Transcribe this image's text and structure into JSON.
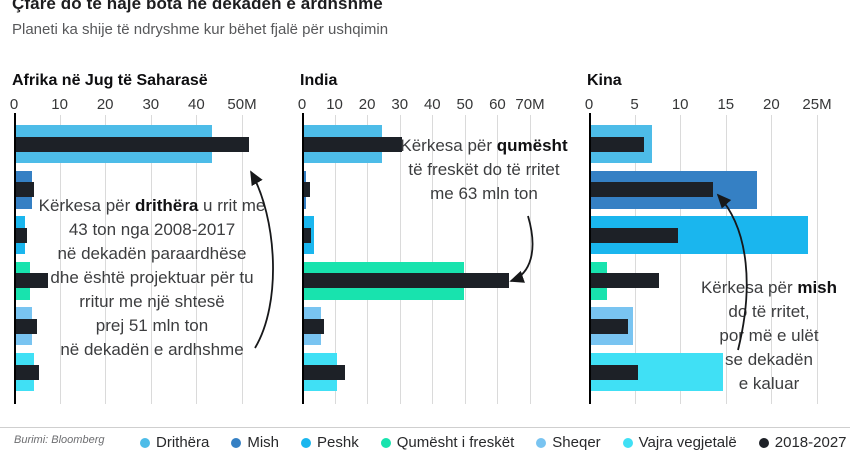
{
  "header": {
    "title": "Çfarë do të hajë bota në dekadën e ardhshme",
    "subtitle": "Planeti ka shije të ndryshme kur bëhet fjalë për ushqimin"
  },
  "source": "Burimi: Bloomberg",
  "colors": {
    "drithera": "#4dbce8",
    "mish": "#3580c4",
    "peshk": "#1ab6ee",
    "qumesht": "#18e3ae",
    "sheqer": "#79c4f1",
    "vajra": "#40e0f5",
    "projection": "#1d2127",
    "gridline": "#dadada",
    "axis": "#000000"
  },
  "legend": [
    {
      "label": "Drithëra",
      "color": "drithera"
    },
    {
      "label": "Mish",
      "color": "mish"
    },
    {
      "label": "Peshk",
      "color": "peshk"
    },
    {
      "label": "Qumësht i freskët",
      "color": "qumesht"
    },
    {
      "label": "Sheqer",
      "color": "sheqer"
    },
    {
      "label": "Vajra vegjetalë",
      "color": "vajra"
    },
    {
      "label": "2018-2027",
      "color": "projection"
    }
  ],
  "chart_data": {
    "type": "bar",
    "orientation": "horizontal",
    "unit": "mln ton",
    "categories": [
      "Drithëra",
      "Mish",
      "Peshk",
      "Qumësht i freskët",
      "Sheqer",
      "Vajra vegjetalë"
    ],
    "category_colors": [
      "drithera",
      "mish",
      "peshk",
      "qumesht",
      "sheqer",
      "vajra"
    ],
    "series_names": [
      "2008-2017",
      "2018-2027"
    ],
    "panels": [
      {
        "title": "Afrika në Jug të Saharasë",
        "xmax": 50,
        "tick_labels": [
          "0",
          "10",
          "20",
          "30",
          "40",
          "50M"
        ],
        "values_2008_2017": [
          43,
          3.5,
          2,
          3,
          3.5,
          4
        ],
        "values_2018_2027": [
          51,
          4,
          2.5,
          7,
          4.5,
          5
        ],
        "annotation": {
          "arrow_target": "Drithëra 2018-2027",
          "lines": [
            [
              {
                "t": "Kërkesa për "
              },
              {
                "t": "drithëra",
                "b": 1
              },
              {
                "t": " u rrit me"
              }
            ],
            [
              {
                "t": "43 ton nga 2008-2017"
              }
            ],
            [
              {
                "t": "në dekadën paraardhëse"
              }
            ],
            [
              {
                "t": "dhe është projektuar për tu"
              }
            ],
            [
              {
                "t": "rritur me një shtesë"
              }
            ],
            [
              {
                "t": "prej 51 mln ton"
              }
            ],
            [
              {
                "t": "në dekadën e ardhshme"
              }
            ]
          ]
        }
      },
      {
        "title": "India",
        "xmax": 70,
        "tick_labels": [
          "0",
          "10",
          "20",
          "30",
          "40",
          "50",
          "60",
          "70M"
        ],
        "values_2008_2017": [
          24,
          0.5,
          3,
          49,
          5.3,
          10
        ],
        "values_2018_2027": [
          30,
          1.8,
          2,
          63,
          6.2,
          12.5
        ],
        "annotation": {
          "arrow_target": "Qumësht i freskët 2018-2027",
          "lines": [
            [
              {
                "t": "Kërkesa për "
              },
              {
                "t": "qumësht",
                "b": 1
              }
            ],
            [
              {
                "t": "të freskët do të rritet"
              }
            ],
            [
              {
                "t": "me 63 mln ton"
              }
            ]
          ]
        }
      },
      {
        "title": "Kina",
        "xmax": 25,
        "tick_labels": [
          "0",
          "5",
          "10",
          "15",
          "20",
          "25M"
        ],
        "values_2008_2017": [
          6.7,
          18.2,
          23.8,
          1.7,
          4.6,
          14.5
        ],
        "values_2018_2027": [
          5.8,
          13.4,
          9.5,
          7.5,
          4.1,
          5.2
        ],
        "annotation": {
          "arrow_target": "Mish 2018-2027",
          "lines": [
            [
              {
                "t": "Kërkesa për "
              },
              {
                "t": "mish",
                "b": 1
              }
            ],
            [
              {
                "t": "do të rritet,"
              }
            ],
            [
              {
                "t": "por më e ulët"
              }
            ],
            [
              {
                "t": "se dekadën"
              }
            ],
            [
              {
                "t": "e kaluar"
              }
            ]
          ]
        }
      }
    ]
  }
}
